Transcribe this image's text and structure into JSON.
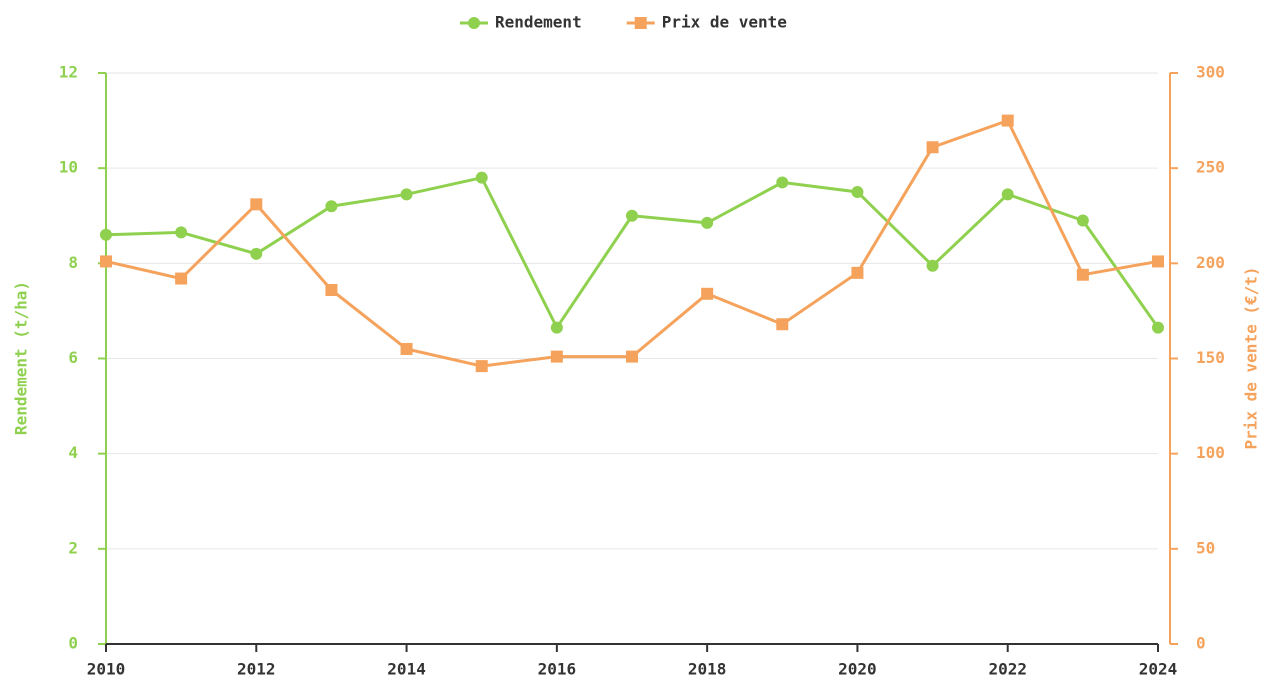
{
  "chart_data": {
    "type": "line",
    "x": [
      2010,
      2011,
      2012,
      2013,
      2014,
      2015,
      2016,
      2017,
      2018,
      2019,
      2020,
      2021,
      2022,
      2023,
      2024
    ],
    "series": [
      {
        "name": "Rendement",
        "color": "#8fd14f",
        "marker": "circle",
        "values": [
          8.6,
          8.65,
          8.2,
          9.2,
          9.45,
          9.8,
          6.65,
          9.0,
          8.85,
          9.7,
          9.5,
          7.95,
          9.45,
          8.9,
          6.65
        ]
      },
      {
        "name": "Prix de vente",
        "color": "#f5a35c",
        "marker": "square",
        "axis": "y2",
        "values": [
          201,
          192,
          231,
          186,
          155,
          146,
          151,
          151,
          184,
          168,
          195,
          261,
          275,
          194,
          201
        ]
      }
    ],
    "ylabel": "Rendement (t/ha)",
    "y2label": "Prix de vente (€/t)",
    "xlim": [
      2010,
      2024
    ],
    "xticks": [
      2010,
      2012,
      2014,
      2016,
      2018,
      2020,
      2022,
      2024
    ],
    "ylim": [
      0,
      12
    ],
    "yticks": [
      0,
      2,
      4,
      6,
      8,
      10,
      12
    ],
    "y2lim": [
      0,
      300
    ],
    "y2ticks": [
      0,
      50,
      100,
      150,
      200,
      250,
      300
    ],
    "grid": true,
    "legend": "top"
  }
}
